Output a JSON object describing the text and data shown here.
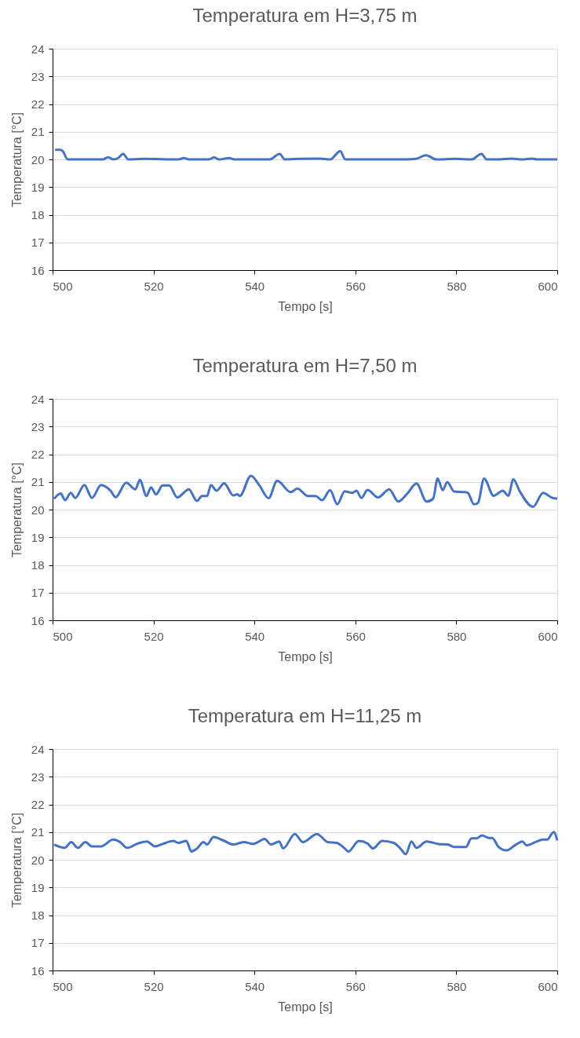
{
  "chart_data": [
    {
      "type": "line",
      "title": "Temperatura em H=3,75 m",
      "xlabel": "Tempo [s]",
      "ylabel": "Temperatura [°C]",
      "xlim": [
        500,
        600
      ],
      "xticks": [
        500,
        520,
        540,
        560,
        580,
        600
      ],
      "ylim": [
        16,
        24
      ],
      "yticks": [
        16,
        17,
        18,
        19,
        20,
        21,
        22,
        23,
        24
      ],
      "grid": "y",
      "marker": "none",
      "line_style": "solid",
      "series": [
        {
          "color": "#4472c4",
          "x": [
            500.5,
            501.5,
            502,
            503,
            510,
            511,
            512,
            513,
            514,
            515,
            518,
            525,
            526,
            527,
            531,
            532,
            533,
            535,
            536,
            543,
            545,
            546,
            549,
            553,
            555,
            557,
            558,
            570,
            572,
            574,
            576,
            580,
            583,
            585,
            586,
            588,
            591,
            593,
            595,
            596,
            600
          ],
          "values": [
            20.35,
            20.35,
            20.3,
            20.0,
            20.0,
            20.08,
            20.0,
            20.05,
            20.2,
            20.0,
            20.02,
            20.0,
            20.05,
            20.0,
            20.0,
            20.07,
            20.0,
            20.05,
            20.0,
            20.0,
            20.2,
            20.0,
            20.02,
            20.03,
            20.0,
            20.3,
            20.0,
            20.0,
            20.02,
            20.15,
            20.0,
            20.02,
            20.0,
            20.2,
            20.0,
            20.0,
            20.03,
            20.0,
            20.03,
            20.0,
            20.0
          ]
        }
      ]
    },
    {
      "type": "line",
      "title": "Temperatura em H=7,50 m",
      "xlabel": "Tempo [s]",
      "ylabel": "Temperatura [°C]",
      "xlim": [
        500,
        600
      ],
      "xticks": [
        500,
        520,
        540,
        560,
        580,
        600
      ],
      "ylim": [
        16,
        24
      ],
      "yticks": [
        16,
        17,
        18,
        19,
        20,
        21,
        22,
        23,
        24
      ],
      "grid": "y",
      "marker": "none",
      "line_style": "solid",
      "series": [
        {
          "color": "#4472c4",
          "x": [
            500.3,
            501.6,
            502.5,
            503.6,
            504.5,
            506.3,
            507.8,
            509.6,
            511.5,
            512.5,
            514.6,
            516.4,
            517.3,
            518.6,
            519.5,
            520.5,
            521.8,
            523.1,
            524.7,
            527.0,
            528.6,
            529.6,
            530.6,
            531.4,
            532.5,
            534.0,
            535.8,
            536.6,
            537.1,
            539.3,
            541.0,
            542.8,
            544.5,
            547.2,
            548.5,
            550.6,
            552.1,
            553.4,
            555.0,
            556.4,
            557.9,
            559.4,
            560.2,
            561.2,
            562.4,
            564.5,
            566.7,
            568.5,
            570.3,
            572.1,
            574.1,
            575.4,
            576.3,
            577.3,
            578.2,
            579.6,
            581.7,
            582.3,
            583.5,
            584.3,
            585.5,
            587.4,
            589.2,
            590.3,
            591.3,
            592.6,
            595.2,
            597.2,
            599.1,
            600
          ],
          "values": [
            20.39,
            20.58,
            20.34,
            20.6,
            20.42,
            20.89,
            20.42,
            20.89,
            20.68,
            20.45,
            20.97,
            20.73,
            21.07,
            20.49,
            20.8,
            20.55,
            20.87,
            20.87,
            20.44,
            20.73,
            20.31,
            20.49,
            20.49,
            20.89,
            20.68,
            20.95,
            20.51,
            20.55,
            20.49,
            21.22,
            20.87,
            20.41,
            21.04,
            20.63,
            20.76,
            20.49,
            20.49,
            20.34,
            20.7,
            20.19,
            20.66,
            20.6,
            20.68,
            20.42,
            20.71,
            20.44,
            20.73,
            20.29,
            20.58,
            20.94,
            20.29,
            20.39,
            21.12,
            20.7,
            20.99,
            20.65,
            20.63,
            20.6,
            20.19,
            20.24,
            21.12,
            20.5,
            20.68,
            20.5,
            21.09,
            20.65,
            20.1,
            20.6,
            20.42,
            20.4
          ]
        }
      ]
    },
    {
      "type": "line",
      "title": "Temperatura em H=11,25 m",
      "xlabel": "Tempo [s]",
      "ylabel": "Temperatura [°C]",
      "xlim": [
        500,
        600
      ],
      "xticks": [
        500,
        520,
        540,
        560,
        580,
        600
      ],
      "ylim": [
        16,
        24
      ],
      "yticks": [
        16,
        17,
        18,
        19,
        20,
        21,
        22,
        23,
        24
      ],
      "grid": "y",
      "marker": "none",
      "line_style": "solid",
      "series": [
        {
          "color": "#4472c4",
          "x": [
            500.3,
            502.4,
            503.7,
            505.0,
            506.5,
            507.8,
            509.6,
            512.0,
            513.3,
            514.8,
            516.9,
            518.7,
            520.3,
            521.8,
            523.9,
            524.9,
            526.5,
            527.5,
            528.6,
            529.9,
            530.6,
            531.9,
            533.7,
            535.8,
            537.9,
            539.7,
            540.7,
            542.0,
            543.3,
            544.9,
            545.7,
            548.0,
            549.6,
            552.4,
            554.5,
            556.3,
            557.9,
            558.6,
            560.7,
            562.4,
            563.5,
            565.3,
            567.6,
            568.9,
            570.0,
            571.1,
            572.1,
            574.1,
            576.5,
            578.3,
            579.6,
            581.2,
            581.9,
            583.0,
            584.0,
            585.1,
            586.4,
            587.1,
            588.4,
            590.0,
            591.6,
            593.1,
            593.9,
            595.7,
            597.2,
            598.0,
            599.3,
            600
          ],
          "values": [
            20.55,
            20.43,
            20.64,
            20.43,
            20.64,
            20.48,
            20.48,
            20.73,
            20.65,
            20.43,
            20.59,
            20.66,
            20.48,
            20.57,
            20.68,
            20.61,
            20.68,
            20.3,
            20.4,
            20.64,
            20.55,
            20.82,
            20.71,
            20.55,
            20.64,
            20.57,
            20.64,
            20.75,
            20.55,
            20.66,
            20.41,
            20.93,
            20.64,
            20.93,
            20.64,
            20.61,
            20.41,
            20.3,
            20.68,
            20.59,
            20.41,
            20.68,
            20.61,
            20.41,
            20.2,
            20.66,
            20.43,
            20.66,
            20.57,
            20.55,
            20.46,
            20.46,
            20.46,
            20.77,
            20.77,
            20.88,
            20.79,
            20.79,
            20.46,
            20.34,
            20.52,
            20.66,
            20.52,
            20.64,
            20.73,
            20.73,
            21.0,
            20.7
          ]
        }
      ]
    }
  ]
}
